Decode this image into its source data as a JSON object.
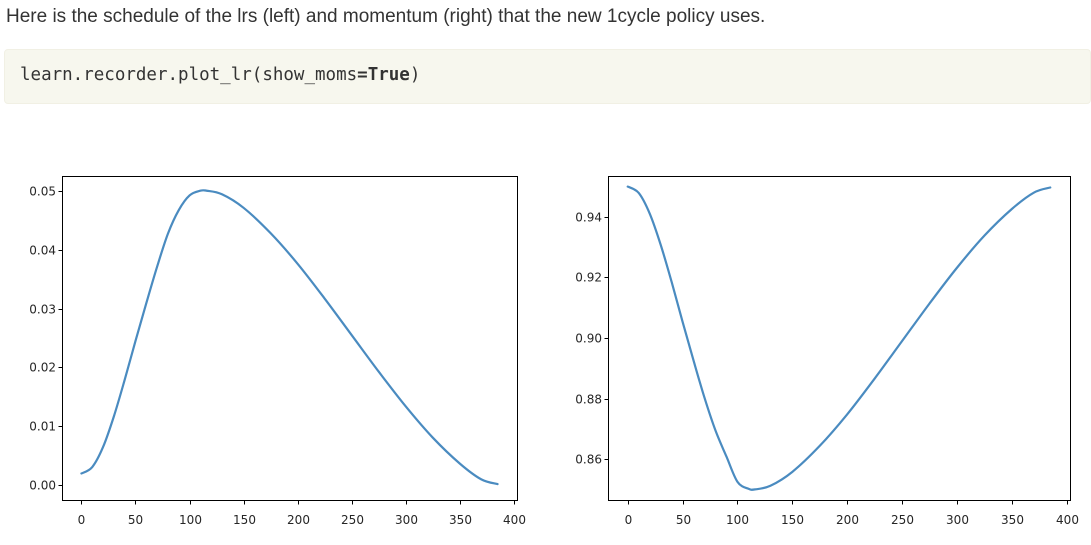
{
  "intro_text": "Here is the schedule of the lrs (left) and momentum (right) that the new 1cycle policy uses.",
  "code": {
    "prefix": "learn.recorder.plot_lr(show_moms",
    "op": "=",
    "keyword": "True",
    "suffix": ")"
  },
  "chart_data": [
    {
      "type": "line",
      "xlim": [
        -18,
        403
      ],
      "ylim": [
        -0.0025,
        0.0525
      ],
      "xticks": [
        0,
        50,
        100,
        150,
        200,
        250,
        300,
        350,
        400
      ],
      "yticks": [
        0.0,
        0.01,
        0.02,
        0.03,
        0.04,
        0.05
      ],
      "ytick_labels": [
        "0.00",
        "0.01",
        "0.02",
        "0.03",
        "0.04",
        "0.05"
      ],
      "grid": false,
      "color": "#4a8bc0",
      "x": [
        0,
        10,
        20,
        30,
        40,
        50,
        60,
        70,
        80,
        90,
        100,
        110,
        116,
        130,
        150,
        175,
        200,
        225,
        250,
        275,
        300,
        325,
        350,
        370,
        385
      ],
      "y": [
        0.002,
        0.0031,
        0.0065,
        0.0117,
        0.0179,
        0.0245,
        0.0309,
        0.0371,
        0.0427,
        0.0467,
        0.0492,
        0.05,
        0.05,
        0.0494,
        0.0471,
        0.0428,
        0.0376,
        0.0317,
        0.0255,
        0.0193,
        0.0134,
        0.0081,
        0.0037,
        0.001,
        0.0002
      ]
    },
    {
      "type": "line",
      "xlim": [
        -18,
        403
      ],
      "ylim": [
        0.8465,
        0.9535
      ],
      "xticks": [
        0,
        50,
        100,
        150,
        200,
        250,
        300,
        350,
        400
      ],
      "yticks": [
        0.86,
        0.88,
        0.9,
        0.92,
        0.94
      ],
      "ytick_labels": [
        "0.86",
        "0.88",
        "0.90",
        "0.92",
        "0.94"
      ],
      "grid": false,
      "color": "#4a8bc0",
      "x": [
        0,
        10,
        20,
        30,
        40,
        50,
        60,
        70,
        80,
        90,
        100,
        110,
        116,
        130,
        150,
        175,
        200,
        225,
        250,
        275,
        300,
        325,
        350,
        370,
        385
      ],
      "y": [
        0.95,
        0.9479,
        0.9411,
        0.9308,
        0.9185,
        0.9053,
        0.8925,
        0.8802,
        0.8694,
        0.8608,
        0.8525,
        0.8502,
        0.85,
        0.8512,
        0.8558,
        0.8644,
        0.8748,
        0.8866,
        0.899,
        0.9114,
        0.9232,
        0.9338,
        0.9426,
        0.948,
        0.9497
      ]
    }
  ]
}
